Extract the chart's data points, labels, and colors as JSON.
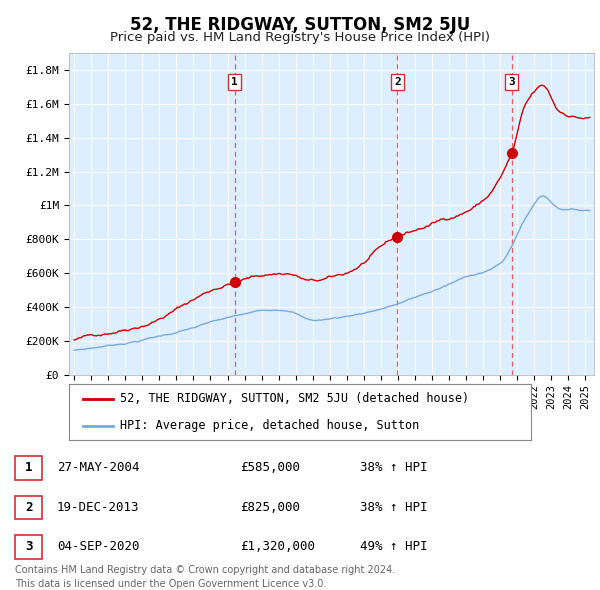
{
  "title": "52, THE RIDGWAY, SUTTON, SM2 5JU",
  "subtitle": "Price paid vs. HM Land Registry's House Price Index (HPI)",
  "ylim": [
    0,
    1900000
  ],
  "yticks": [
    0,
    200000,
    400000,
    600000,
    800000,
    1000000,
    1200000,
    1400000,
    1600000,
    1800000
  ],
  "ytick_labels": [
    "£0",
    "£200K",
    "£400K",
    "£600K",
    "£800K",
    "£1M",
    "£1.2M",
    "£1.4M",
    "£1.6M",
    "£1.8M"
  ],
  "xlim_start": 1994.7,
  "xlim_end": 2025.5,
  "red_line_color": "#cc0000",
  "blue_line_color": "#7aaadd",
  "bg_color": "#ddeeff",
  "grid_color": "#ffffff",
  "dashed_line_color": "#dd4444",
  "sale_dates": [
    2004.41,
    2013.97,
    2020.67
  ],
  "sale_labels": [
    "1",
    "2",
    "3"
  ],
  "sale_prices": [
    585000,
    825000,
    1320000
  ],
  "legend_red_label": "52, THE RIDGWAY, SUTTON, SM2 5JU (detached house)",
  "legend_blue_label": "HPI: Average price, detached house, Sutton",
  "table_rows": [
    {
      "num": "1",
      "date": "27-MAY-2004",
      "price": "£585,000",
      "change": "38% ↑ HPI"
    },
    {
      "num": "2",
      "date": "19-DEC-2013",
      "price": "£825,000",
      "change": "38% ↑ HPI"
    },
    {
      "num": "3",
      "date": "04-SEP-2020",
      "price": "£1,320,000",
      "change": "49% ↑ HPI"
    }
  ],
  "footnote": "Contains HM Land Registry data © Crown copyright and database right 2024.\nThis data is licensed under the Open Government Licence v3.0.",
  "title_fontsize": 12,
  "subtitle_fontsize": 9.5,
  "tick_fontsize": 8,
  "legend_fontsize": 8.5,
  "table_fontsize": 9,
  "footnote_fontsize": 7
}
